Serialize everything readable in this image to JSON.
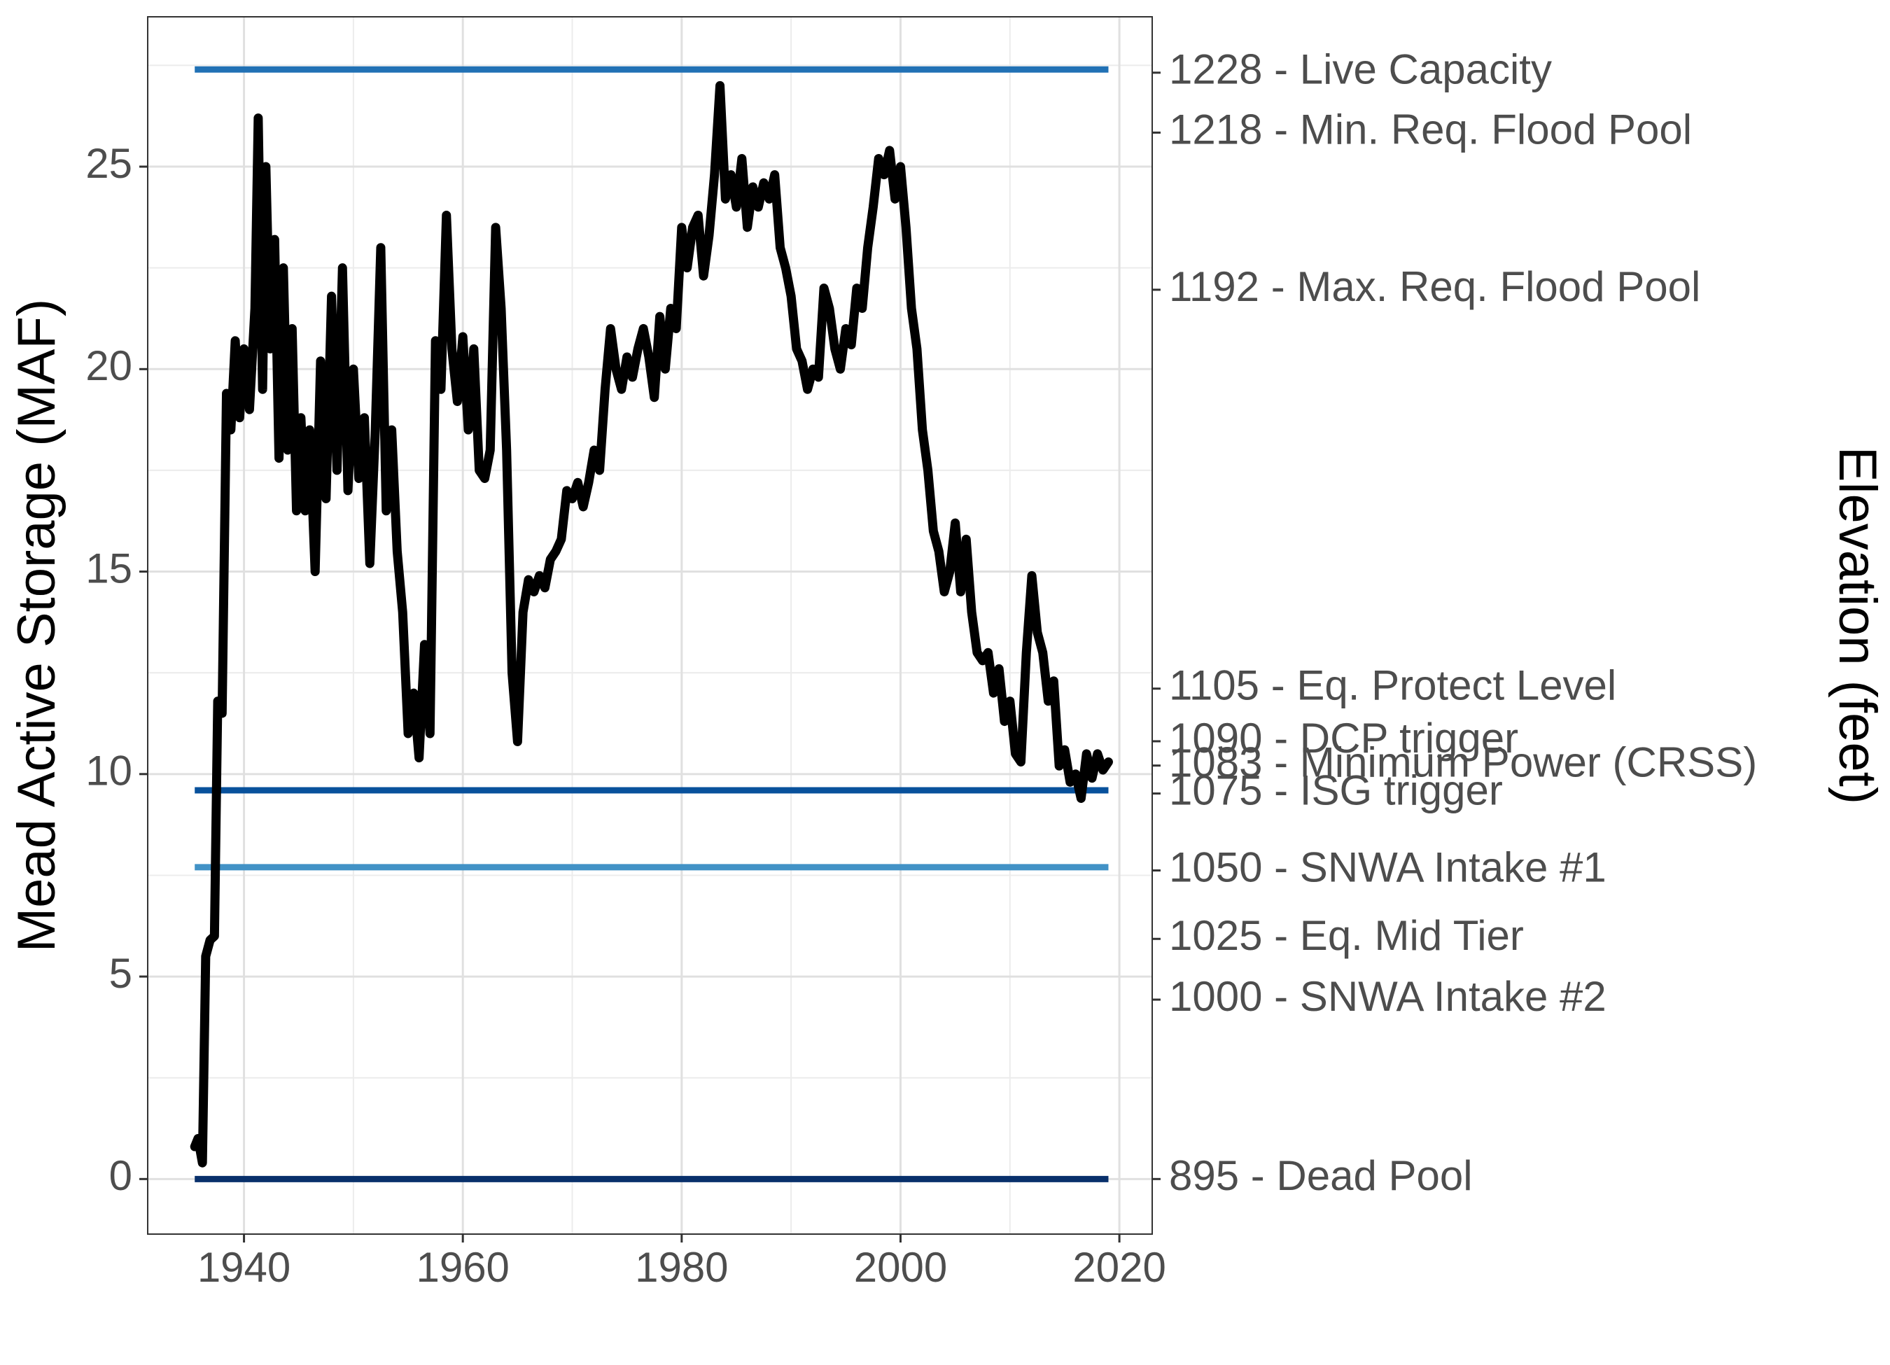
{
  "chart_data": {
    "type": "line",
    "y_label": "Mead Active Storage (MAF)",
    "y2_label": "Elevation (feet)",
    "xlim": [
      1931.2,
      2023.0
    ],
    "xticks": [
      1940,
      1960,
      1980,
      2000,
      2020
    ],
    "xminorticks": [
      1950,
      1970,
      1990,
      2010
    ],
    "ylim": [
      -1.36,
      28.7
    ],
    "yticks": [
      0,
      5,
      10,
      15,
      20,
      25
    ],
    "yminorticks": [
      2.5,
      7.5,
      12.5,
      17.5,
      22.5,
      27.5
    ],
    "y2lim": [
      -1.36,
      28.7
    ],
    "y2ticks": [
      {
        "value": 27.32,
        "label": "1228 - Live Capacity"
      },
      {
        "value": 25.84,
        "label": "1218 - Min. Req. Flood Pool"
      },
      {
        "value": 21.96,
        "label": "1192 - Max. Req. Flood Pool"
      },
      {
        "value": 12.11,
        "label": "1105 - Eq. Protect Level"
      },
      {
        "value": 10.81,
        "label": "1090 - DCP trigger"
      },
      {
        "value": 10.21,
        "label": "1083 - Minimum Power (CRSS)"
      },
      {
        "value": 9.52,
        "label": "1075 - ISG trigger"
      },
      {
        "value": 7.62,
        "label": "1050 - SNWA Intake #1"
      },
      {
        "value": 5.93,
        "label": "1025 - Eq. Mid Tier"
      },
      {
        "value": 4.43,
        "label": "1000 - SNWA Intake #2"
      },
      {
        "value": 0,
        "label": "895 - Dead Pool"
      }
    ],
    "grid": true,
    "hline_x": [
      1935.5,
      2019
    ],
    "hlines": [
      {
        "y": 27.4,
        "color": "#2171b5"
      },
      {
        "y": 9.6,
        "color": "#08519c"
      },
      {
        "y": 7.7,
        "color": "#4292c6"
      },
      {
        "y": 0,
        "color": "#08306b"
      }
    ],
    "series": [
      {
        "color": "#000000",
        "x": [
          1935.5,
          1935.8,
          1936.2,
          1936.5,
          1936.9,
          1937.3,
          1937.6,
          1938.0,
          1938.4,
          1938.8,
          1939.2,
          1939.6,
          1940.0,
          1940.5,
          1941.0,
          1941.3,
          1941.7,
          1942.0,
          1942.4,
          1942.8,
          1943.2,
          1943.6,
          1944.0,
          1944.4,
          1944.8,
          1945.2,
          1945.6,
          1946.0,
          1946.5,
          1947.0,
          1947.5,
          1948.0,
          1948.5,
          1949.0,
          1949.5,
          1950.0,
          1950.5,
          1951.0,
          1951.5,
          1952.0,
          1952.5,
          1953.0,
          1953.5,
          1954.0,
          1954.5,
          1955.0,
          1955.5,
          1956.0,
          1956.5,
          1957.0,
          1957.5,
          1958.0,
          1958.5,
          1959.0,
          1959.5,
          1960.0,
          1960.5,
          1961.0,
          1961.5,
          1962.0,
          1962.5,
          1963.0,
          1963.5,
          1964.0,
          1964.5,
          1965.0,
          1965.5,
          1966.0,
          1966.5,
          1967.0,
          1967.5,
          1968.0,
          1968.5,
          1969.0,
          1969.5,
          1970.0,
          1970.5,
          1971.0,
          1971.5,
          1972.0,
          1972.5,
          1973.0,
          1973.5,
          1974.0,
          1974.5,
          1975.0,
          1975.5,
          1976.0,
          1976.5,
          1977.0,
          1977.5,
          1978.0,
          1978.5,
          1979.0,
          1979.5,
          1980.0,
          1980.5,
          1981.0,
          1981.5,
          1982.0,
          1982.5,
          1983.0,
          1983.5,
          1984.0,
          1984.5,
          1985.0,
          1985.5,
          1986.0,
          1986.5,
          1987.0,
          1987.5,
          1988.0,
          1988.5,
          1989.0,
          1989.5,
          1990.0,
          1990.5,
          1991.0,
          1991.5,
          1992.0,
          1992.5,
          1993.0,
          1993.5,
          1994.0,
          1994.5,
          1995.0,
          1995.5,
          1996.0,
          1996.5,
          1997.0,
          1997.5,
          1998.0,
          1998.5,
          1999.0,
          1999.5,
          2000.0,
          2000.5,
          2001.0,
          2001.5,
          2002.0,
          2002.5,
          2003.0,
          2003.5,
          2004.0,
          2004.5,
          2005.0,
          2005.5,
          2006.0,
          2006.5,
          2007.0,
          2007.5,
          2008.0,
          2008.5,
          2009.0,
          2009.5,
          2010.0,
          2010.5,
          2011.0,
          2011.5,
          2012.0,
          2012.5,
          2013.0,
          2013.5,
          2014.0,
          2014.5,
          2015.0,
          2015.5,
          2016.0,
          2016.5,
          2017.0,
          2017.5,
          2018.0,
          2018.5,
          2019.0
        ],
        "values": [
          0.8,
          1.0,
          0.4,
          5.5,
          5.9,
          6.0,
          11.8,
          11.5,
          19.4,
          18.5,
          20.7,
          18.8,
          20.5,
          19.0,
          21.5,
          26.2,
          19.5,
          25.0,
          20.5,
          23.2,
          17.8,
          22.5,
          18.0,
          21.0,
          16.5,
          18.8,
          16.5,
          18.5,
          15.0,
          20.2,
          16.8,
          21.8,
          17.5,
          22.5,
          17.0,
          20.0,
          17.3,
          18.8,
          15.2,
          18.5,
          23.0,
          16.5,
          18.5,
          15.5,
          14.0,
          11.0,
          12.0,
          10.4,
          13.2,
          11.0,
          20.7,
          19.5,
          23.8,
          20.5,
          19.2,
          20.8,
          18.5,
          20.5,
          17.5,
          17.3,
          18.0,
          23.5,
          21.5,
          18.0,
          12.5,
          10.8,
          14.0,
          14.8,
          14.5,
          14.9,
          14.6,
          15.3,
          15.5,
          15.8,
          17.0,
          16.8,
          17.2,
          16.6,
          17.2,
          18.0,
          17.5,
          19.5,
          21.0,
          20.0,
          19.5,
          20.3,
          19.8,
          20.5,
          21.0,
          20.3,
          19.3,
          21.3,
          20.0,
          21.5,
          21.0,
          23.5,
          22.5,
          23.5,
          23.8,
          22.3,
          23.3,
          24.8,
          27.0,
          24.2,
          24.8,
          24.0,
          25.2,
          23.5,
          24.5,
          24.0,
          24.6,
          24.2,
          24.8,
          23.0,
          22.5,
          21.8,
          20.5,
          20.2,
          19.5,
          20.0,
          19.8,
          22.0,
          21.5,
          20.5,
          20.0,
          21.0,
          20.6,
          22.0,
          21.5,
          23.0,
          24.0,
          25.2,
          24.8,
          25.4,
          24.2,
          25.0,
          23.5,
          21.5,
          20.5,
          18.5,
          17.5,
          16.0,
          15.5,
          14.5,
          15.0,
          16.2,
          14.5,
          15.8,
          14.0,
          13.0,
          12.8,
          13.0,
          12.0,
          12.6,
          11.3,
          11.8,
          10.5,
          10.3,
          13.0,
          14.9,
          13.5,
          13.0,
          11.8,
          12.3,
          10.2,
          10.6,
          9.8,
          10.0,
          9.4,
          10.5,
          9.9,
          10.5,
          10.1,
          10.3
        ]
      }
    ]
  }
}
